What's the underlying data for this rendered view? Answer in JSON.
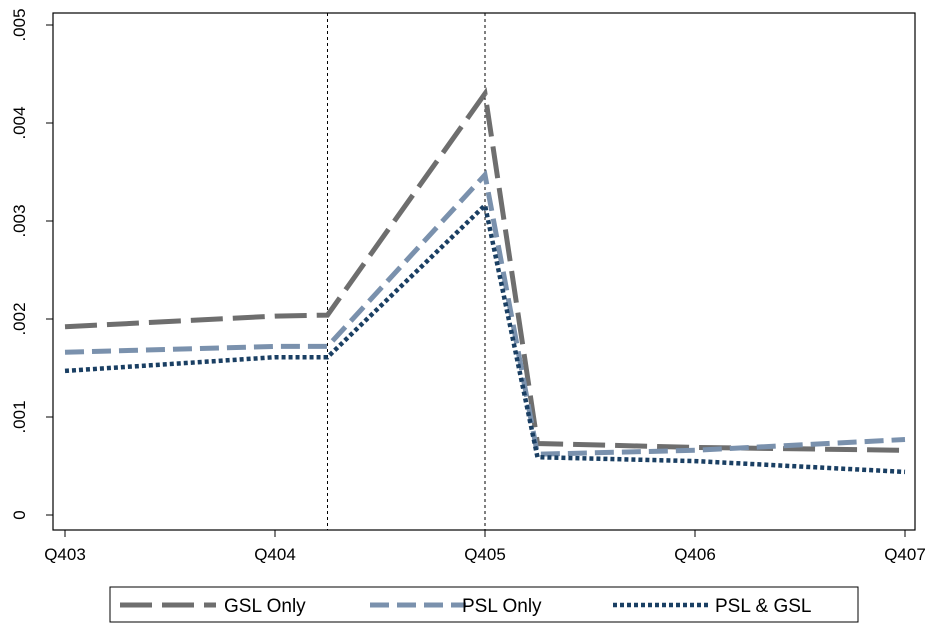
{
  "chart_data": {
    "type": "line",
    "title": "",
    "xlabel": "",
    "ylabel": "",
    "x": [
      0,
      1,
      1.25,
      2,
      2.25,
      3,
      4
    ],
    "xlim": [
      0,
      4
    ],
    "ylim": [
      0,
      0.005
    ],
    "x_ticks": [
      {
        "x": 0,
        "label": "Q403"
      },
      {
        "x": 1,
        "label": "Q404"
      },
      {
        "x": 2,
        "label": "Q405"
      },
      {
        "x": 3,
        "label": "Q406"
      },
      {
        "x": 4,
        "label": "Q407"
      }
    ],
    "y_ticks": [
      {
        "y": 0,
        "label": "0"
      },
      {
        "y": 0.001,
        "label": ".001"
      },
      {
        "y": 0.002,
        "label": ".002"
      },
      {
        "y": 0.003,
        "label": ".003"
      },
      {
        "y": 0.004,
        "label": ".004"
      },
      {
        "y": 0.005,
        "label": ".005"
      }
    ],
    "vertical_reference_lines": [
      1.25,
      2
    ],
    "grid": false,
    "legend_position": "bottom",
    "series": [
      {
        "name": "GSL Only",
        "color": "#6e6e6e",
        "style": "long-dash",
        "values": [
          0.00192,
          0.00203,
          0.00204,
          0.0043,
          0.00073,
          0.00069,
          0.00066
        ]
      },
      {
        "name": "PSL Only",
        "color": "#7a91ad",
        "style": "dash",
        "values": [
          0.00166,
          0.00172,
          0.00172,
          0.00347,
          0.00062,
          0.00066,
          0.00077
        ]
      },
      {
        "name": "PSL & GSL",
        "color": "#1a3f63",
        "style": "dot",
        "values": [
          0.00147,
          0.00161,
          0.00161,
          0.00316,
          0.00059,
          0.00055,
          0.00044
        ]
      }
    ]
  }
}
